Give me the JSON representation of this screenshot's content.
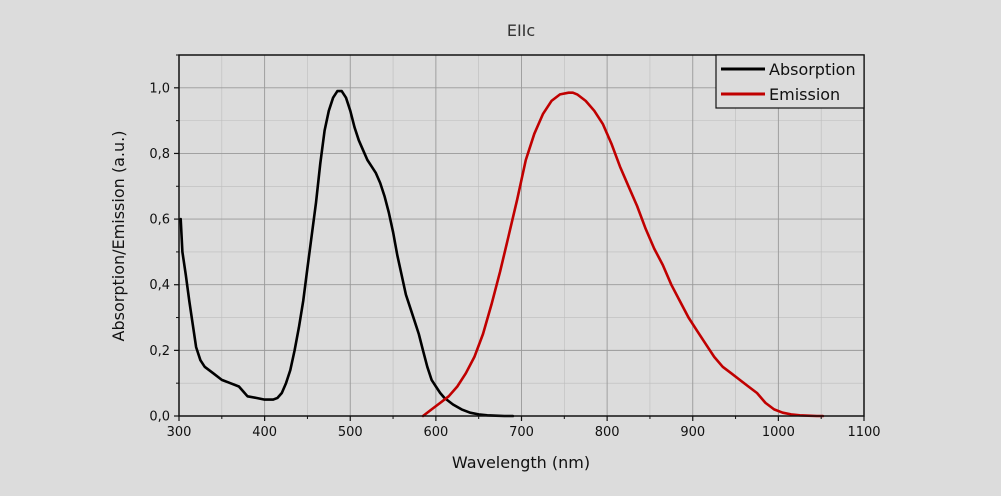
{
  "chart_data": {
    "type": "line",
    "title": "EIIc",
    "xlabel": "Wavelength (nm)",
    "ylabel": "Absorption/Emission (a.u.)",
    "xlim": [
      300,
      1100
    ],
    "ylim": [
      0,
      1.1
    ],
    "grid": true,
    "legend_position": "top-right",
    "x_ticks": [
      300,
      400,
      500,
      600,
      700,
      800,
      900,
      1000,
      1100
    ],
    "x_tick_labels": [
      "300",
      "400",
      "500",
      "600",
      "700",
      "800",
      "900",
      "1000",
      "1100"
    ],
    "y_ticks": [
      0,
      0.2,
      0.4,
      0.6,
      0.8,
      1.0
    ],
    "y_tick_labels": [
      "0,0",
      "0,2",
      "0,4",
      "0,6",
      "0,8",
      "1,0"
    ],
    "series": [
      {
        "name": "Absorption",
        "color": "#000000",
        "x": [
          302,
          304,
          308,
          312,
          316,
          320,
          325,
          330,
          340,
          350,
          360,
          370,
          375,
          380,
          390,
          400,
          405,
          410,
          415,
          420,
          425,
          430,
          435,
          440,
          445,
          450,
          455,
          460,
          465,
          470,
          475,
          480,
          485,
          490,
          495,
          500,
          505,
          510,
          515,
          520,
          525,
          530,
          535,
          540,
          545,
          550,
          555,
          560,
          565,
          570,
          575,
          580,
          585,
          590,
          595,
          600,
          605,
          610,
          620,
          630,
          640,
          650,
          660,
          670,
          680,
          690
        ],
        "y": [
          0.6,
          0.5,
          0.43,
          0.35,
          0.28,
          0.21,
          0.17,
          0.15,
          0.13,
          0.11,
          0.1,
          0.09,
          0.075,
          0.06,
          0.055,
          0.05,
          0.05,
          0.05,
          0.055,
          0.07,
          0.1,
          0.14,
          0.2,
          0.27,
          0.35,
          0.45,
          0.55,
          0.65,
          0.77,
          0.87,
          0.93,
          0.97,
          0.99,
          0.99,
          0.97,
          0.93,
          0.88,
          0.84,
          0.81,
          0.78,
          0.76,
          0.74,
          0.71,
          0.67,
          0.62,
          0.56,
          0.49,
          0.43,
          0.37,
          0.33,
          0.29,
          0.25,
          0.2,
          0.15,
          0.11,
          0.09,
          0.07,
          0.055,
          0.035,
          0.02,
          0.01,
          0.005,
          0.002,
          0.001,
          0.0,
          0.0
        ]
      },
      {
        "name": "Emission",
        "color": "#c00000",
        "x": [
          585,
          595,
          605,
          615,
          625,
          635,
          645,
          655,
          665,
          675,
          685,
          695,
          705,
          715,
          725,
          735,
          745,
          755,
          760,
          765,
          775,
          785,
          795,
          805,
          815,
          825,
          835,
          845,
          855,
          865,
          875,
          885,
          895,
          905,
          915,
          925,
          935,
          945,
          955,
          965,
          975,
          985,
          995,
          1005,
          1015,
          1025,
          1035,
          1045,
          1052
        ],
        "y": [
          0.0,
          0.02,
          0.04,
          0.06,
          0.09,
          0.13,
          0.18,
          0.25,
          0.34,
          0.44,
          0.55,
          0.66,
          0.78,
          0.86,
          0.92,
          0.96,
          0.98,
          0.985,
          0.985,
          0.98,
          0.96,
          0.93,
          0.89,
          0.83,
          0.76,
          0.7,
          0.64,
          0.57,
          0.51,
          0.46,
          0.4,
          0.35,
          0.3,
          0.26,
          0.22,
          0.18,
          0.15,
          0.13,
          0.11,
          0.09,
          0.07,
          0.04,
          0.02,
          0.01,
          0.005,
          0.002,
          0.001,
          0.0,
          0.0
        ]
      }
    ]
  }
}
